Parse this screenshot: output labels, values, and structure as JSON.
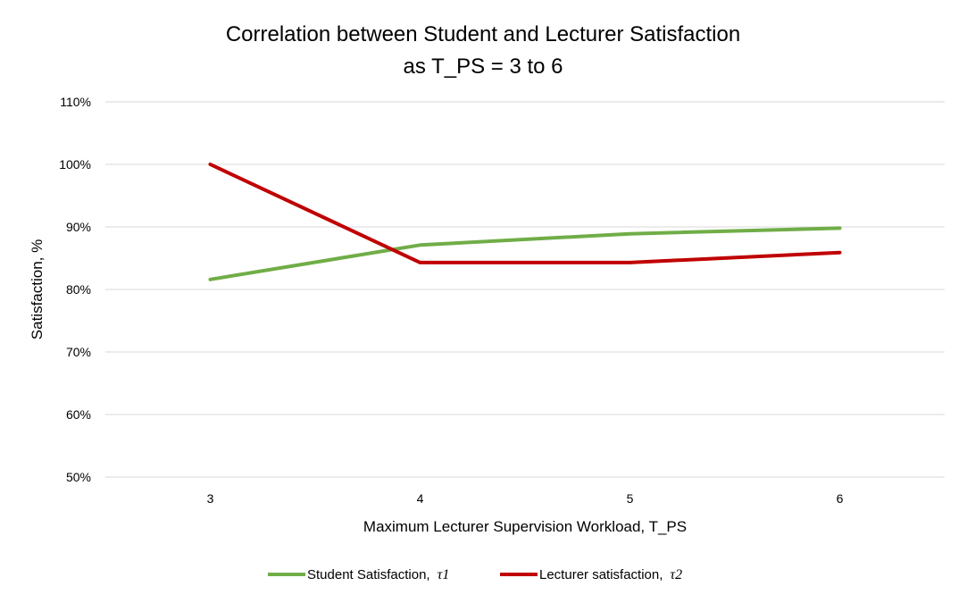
{
  "chart_data": {
    "type": "line",
    "title": "Correlation between Student and Lecturer Satisfaction",
    "subtitle": "as T_PS = 3 to 6",
    "xlabel": "Maximum Lecturer Supervision Workload, T_PS",
    "ylabel": "Satisfaction, %",
    "categories": [
      "3",
      "4",
      "5",
      "6"
    ],
    "yticks": [
      "50%",
      "60%",
      "70%",
      "80%",
      "90%",
      "100%",
      "110%"
    ],
    "ylim": [
      50,
      110
    ],
    "grid": true,
    "legend_position": "bottom",
    "series": [
      {
        "name": "Student Satisfaction,",
        "symbol": "τ1",
        "color": "#70ad47",
        "values": [
          81.6,
          87.1,
          88.9,
          89.8
        ]
      },
      {
        "name": "Lecturer satisfaction,",
        "symbol": "τ2",
        "color": "#c00000",
        "values": [
          100.0,
          84.3,
          84.3,
          85.9
        ]
      }
    ]
  }
}
